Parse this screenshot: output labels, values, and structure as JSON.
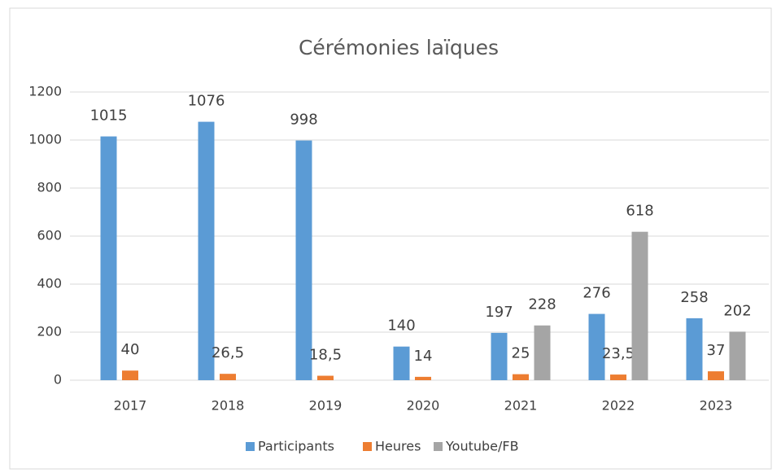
{
  "chart_data": {
    "type": "bar",
    "title": "Cérémonies laïques",
    "categories": [
      "2017",
      "2018",
      "2019",
      "2020",
      "2021",
      "2022",
      "2023"
    ],
    "series": [
      {
        "name": "Participants",
        "color": "#5b9bd5",
        "values": [
          1015,
          1076,
          998,
          140,
          197,
          276,
          258
        ]
      },
      {
        "name": "Heures",
        "color": "#ed7d31",
        "values": [
          40,
          26.5,
          18.5,
          14,
          25,
          23.5,
          37
        ],
        "value_labels": [
          "40",
          "26,5",
          "18,5",
          "14",
          "25",
          "23,5",
          "37"
        ]
      },
      {
        "name": "Youtube/FB",
        "color": "#a5a5a5",
        "values": [
          null,
          null,
          null,
          null,
          228,
          618,
          202
        ]
      }
    ],
    "ylim": [
      0,
      1200
    ],
    "yticks": [
      0,
      200,
      400,
      600,
      800,
      1000,
      1200
    ],
    "grid": true,
    "legend": "bottom"
  }
}
